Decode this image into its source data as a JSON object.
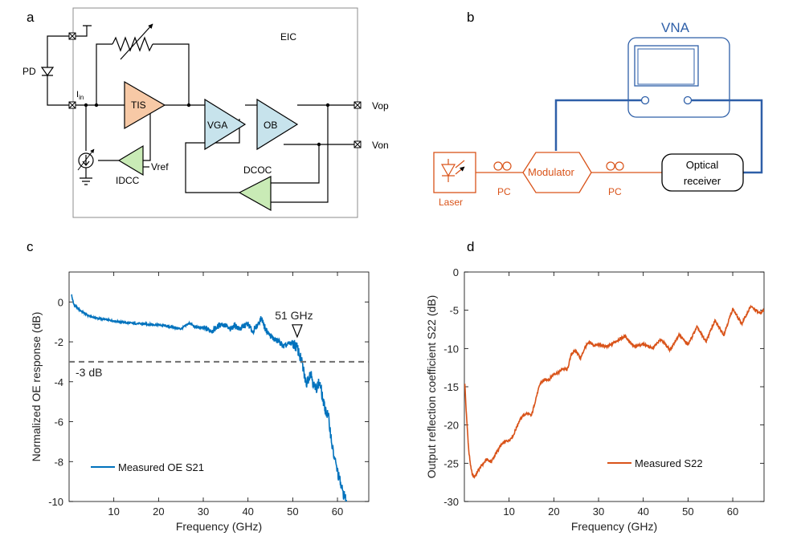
{
  "colors": {
    "orange": "#D95319",
    "blue": "#0072BD",
    "vna_blue": "#2E5FA8",
    "tis_fill": "#F7C9A6",
    "vga_fill": "#C7E3EC",
    "dcoc_fill": "#C9EBB6",
    "dashed": "#6E6E6E",
    "frame": "#8C8C8C"
  },
  "panel_a": {
    "letter": "a",
    "eic": "EIC",
    "pd": "PD",
    "iin_main": "I",
    "iin_sub": "in",
    "tis": "TIS",
    "vga": "VGA",
    "ob": "OB",
    "dcoc": "DCOC",
    "idcc": "IDCC",
    "vref": "Vref",
    "vop": "Vop",
    "von": "Von"
  },
  "panel_b": {
    "letter": "b",
    "vna": "VNA",
    "laser": "Laser",
    "pc1": "PC",
    "modulator": "Modulator",
    "pc2": "PC",
    "receiver_line1": "Optical",
    "receiver_line2": "receiver"
  },
  "chart_data": [
    {
      "panel": "c",
      "type": "line",
      "xlabel": "Frequency (GHz)",
      "ylabel": "Normalized OE response (dB)",
      "xlim": [
        0,
        67
      ],
      "ylim": [
        -10,
        1.5
      ],
      "xticks": [
        10,
        20,
        30,
        40,
        50,
        60
      ],
      "yticks": [
        0,
        -2,
        -4,
        -6,
        -8,
        -10
      ],
      "grid": false,
      "legend": "bottom-left",
      "series": [
        {
          "name": "Measured OE S21",
          "color": "#0072BD",
          "x": [
            0.5,
            1,
            2,
            3,
            4,
            5,
            7,
            10,
            13,
            16,
            20,
            23,
            25,
            27,
            28,
            30,
            32,
            34,
            35,
            36,
            37,
            38,
            40,
            41,
            42,
            43,
            44,
            45,
            46,
            47,
            48,
            49,
            50,
            51,
            52,
            53,
            54,
            55,
            56,
            57,
            58,
            59,
            60,
            61,
            62
          ],
          "y": [
            0.4,
            -0.1,
            -0.35,
            -0.5,
            -0.65,
            -0.75,
            -0.85,
            -0.95,
            -1.05,
            -1.1,
            -1.15,
            -1.25,
            -1.35,
            -1.05,
            -1.25,
            -1.3,
            -1.45,
            -1.1,
            -1.2,
            -1.4,
            -1.15,
            -1.35,
            -1.1,
            -1.5,
            -1.2,
            -0.8,
            -1.4,
            -1.7,
            -1.9,
            -2.0,
            -2.25,
            -2.1,
            -2.05,
            -2.3,
            -3.0,
            -4.1,
            -3.5,
            -4.4,
            -4.0,
            -5.2,
            -5.8,
            -7.5,
            -8.5,
            -9.4,
            -10.0
          ]
        }
      ],
      "annotations": [
        {
          "text": "51 GHz",
          "x": 51
        },
        {
          "text": "-3 dB",
          "y": -3
        }
      ]
    },
    {
      "panel": "d",
      "type": "line",
      "xlabel": "Frequency (GHz)",
      "ylabel": "Output reflection coefficient S22 (dB)",
      "xlim": [
        0,
        67
      ],
      "ylim": [
        -30,
        0
      ],
      "xticks": [
        10,
        20,
        30,
        40,
        50,
        60
      ],
      "yticks": [
        0,
        -5,
        -10,
        -15,
        -20,
        -25,
        -30
      ],
      "grid": false,
      "legend": "bottom-right",
      "series": [
        {
          "name": "Measured S22",
          "color": "#D95319",
          "x": [
            0.1,
            0.3,
            0.6,
            1,
            1.5,
            2,
            2.5,
            3,
            4,
            5,
            6,
            7,
            8,
            9,
            10,
            11,
            12,
            13,
            14,
            15,
            16,
            17,
            18,
            19,
            20,
            21,
            22,
            23,
            24,
            25,
            26,
            27,
            28,
            29,
            30,
            32,
            34,
            36,
            38,
            40,
            42,
            44,
            46,
            48,
            50,
            52,
            54,
            56,
            58,
            60,
            62,
            64,
            66,
            67
          ],
          "y": [
            -14.5,
            -17,
            -20,
            -23.5,
            -25.8,
            -26.8,
            -26.6,
            -26,
            -25.2,
            -24.5,
            -24.8,
            -23.8,
            -22.8,
            -22.2,
            -22,
            -21.3,
            -19.8,
            -18.8,
            -18.5,
            -18.8,
            -16.5,
            -14.5,
            -14.1,
            -14,
            -13.3,
            -13.2,
            -12.6,
            -12.8,
            -10.6,
            -10.3,
            -11.3,
            -9.8,
            -9.2,
            -9.6,
            -9.5,
            -9.8,
            -9.0,
            -8.4,
            -9.8,
            -9.4,
            -10.0,
            -8.8,
            -10.2,
            -8.2,
            -9.5,
            -7.2,
            -9.1,
            -6.4,
            -8.2,
            -4.8,
            -6.8,
            -4.5,
            -5.4,
            -5.0
          ]
        }
      ]
    }
  ]
}
